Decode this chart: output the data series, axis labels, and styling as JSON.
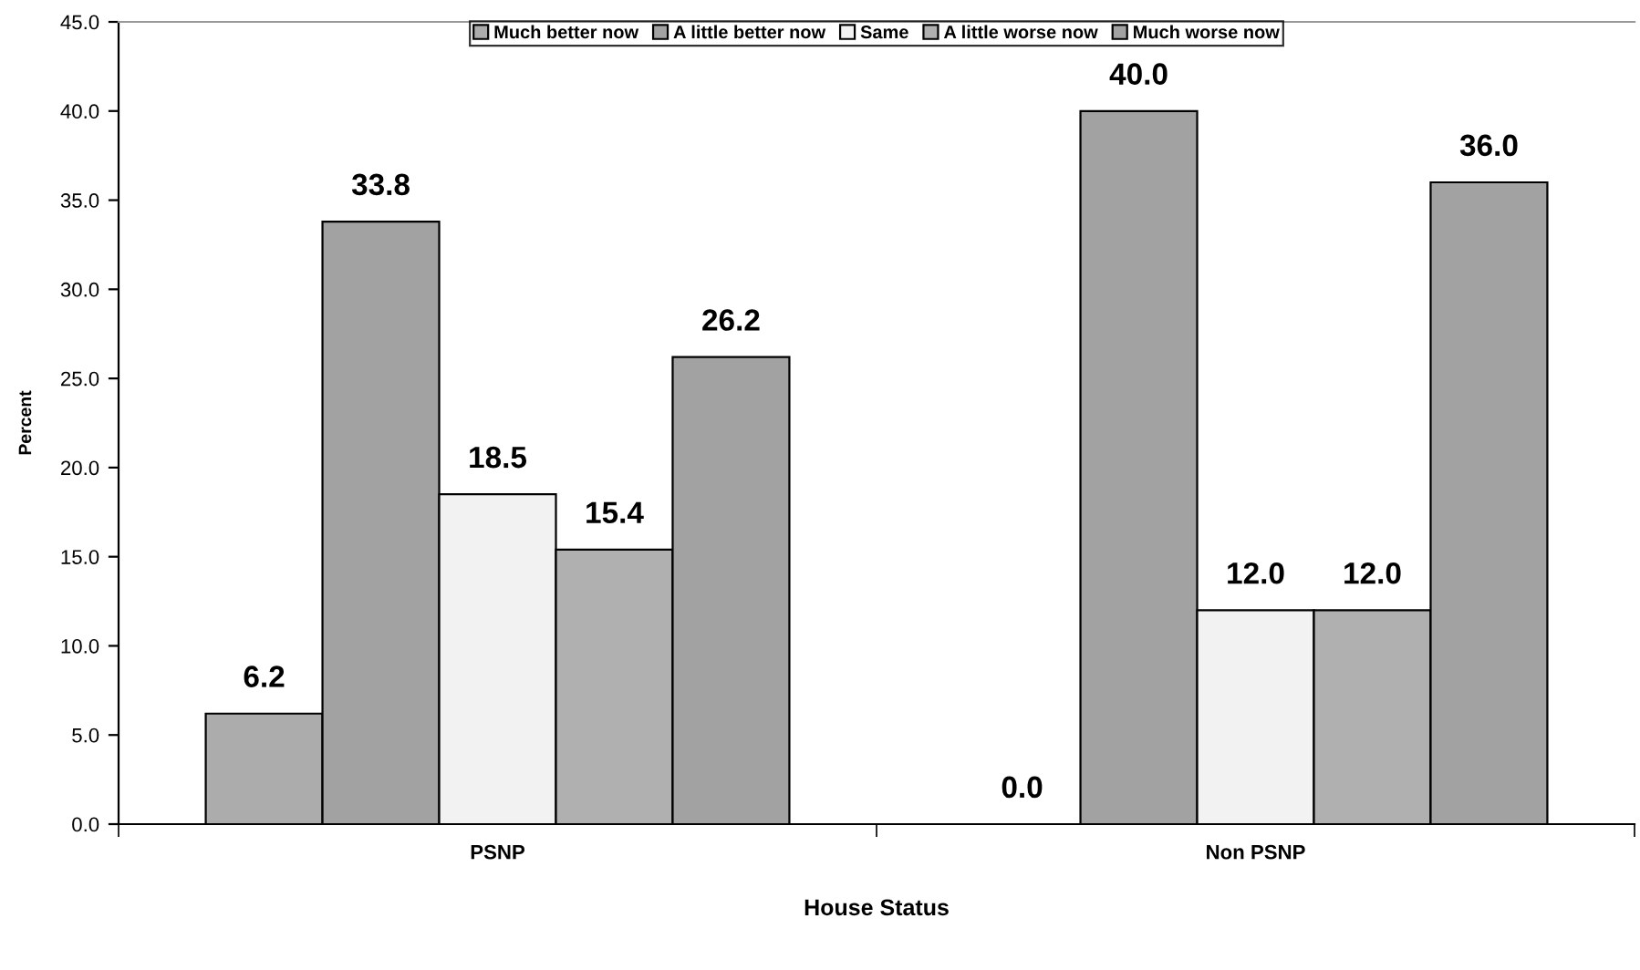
{
  "chart_data": {
    "type": "bar",
    "xlabel": "House Status",
    "ylabel": "Percent",
    "categories": [
      "PSNP",
      "Non PSNP"
    ],
    "series": [
      {
        "name": "Much better now",
        "color": "#acacac",
        "values": [
          6.2,
          0.0
        ],
        "value_labels": [
          "6.2",
          "0.0"
        ]
      },
      {
        "name": "A little better now",
        "color": "#a2a2a2",
        "values": [
          33.8,
          40.0
        ],
        "value_labels": [
          "33.8",
          "40.0"
        ]
      },
      {
        "name": "Same",
        "color": "#f2f2f2",
        "values": [
          18.5,
          12.0
        ],
        "value_labels": [
          "18.5",
          "12.0"
        ]
      },
      {
        "name": "A little worse now",
        "color": "#b0b0b0",
        "values": [
          15.4,
          12.0
        ],
        "value_labels": [
          "15.4",
          "12.0"
        ]
      },
      {
        "name": "Much worse now",
        "color": "#a2a2a2",
        "values": [
          26.2,
          36.0
        ],
        "value_labels": [
          "26.2",
          "36.0"
        ]
      }
    ],
    "ylim": [
      0,
      45
    ],
    "yticks": [
      {
        "value": 0,
        "label": "0.0"
      },
      {
        "value": 5,
        "label": "5.0"
      },
      {
        "value": 10,
        "label": "10.0"
      },
      {
        "value": 15,
        "label": "15.0"
      },
      {
        "value": 20,
        "label": "20.0"
      },
      {
        "value": 25,
        "label": "25.0"
      },
      {
        "value": 30,
        "label": "30.0"
      },
      {
        "value": 35,
        "label": "35.0"
      },
      {
        "value": 40,
        "label": "40.0"
      },
      {
        "value": 45,
        "label": "45.0"
      }
    ],
    "grid": false,
    "legend": "top"
  }
}
